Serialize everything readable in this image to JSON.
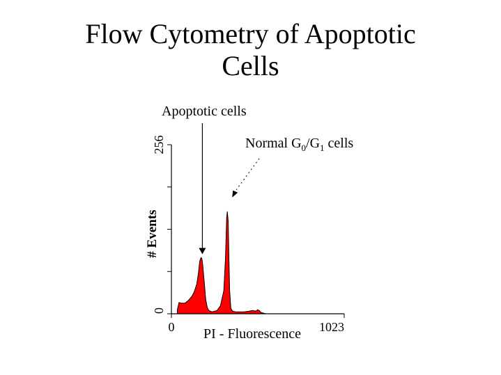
{
  "slide": {
    "title_line1": "Flow Cytometry of Apoptotic",
    "title_line2": "Cells"
  },
  "chart_data": {
    "type": "area",
    "title": "Flow Cytometry of Apoptotic Cells",
    "xlabel": "PI - Fluorescence",
    "ylabel": "# Events",
    "xlim": [
      0,
      1023
    ],
    "ylim": [
      0,
      256
    ],
    "x_ticks": [
      {
        "value": 0,
        "label": "0"
      },
      {
        "value": 1023,
        "label": "1023"
      }
    ],
    "y_ticks": [
      {
        "value": 0,
        "label": "0"
      },
      {
        "value": 256,
        "label": "256"
      }
    ],
    "y_gridmarks": [
      0,
      64,
      128,
      192,
      256
    ],
    "grid": false,
    "fill_color": "#ff0000",
    "series": [
      {
        "x": [
          35,
          45,
          60,
          80,
          100,
          120,
          135,
          150,
          160,
          168,
          175,
          180,
          185,
          190,
          195,
          203,
          213,
          222,
          240,
          270,
          290,
          310,
          320,
          327,
          331,
          336,
          340,
          345,
          352,
          362,
          380,
          400,
          430,
          460,
          480,
          500,
          510,
          520,
          530,
          545,
          560,
          600,
          700,
          800,
          900,
          1023
        ],
        "y": [
          6,
          17,
          16,
          16,
          20,
          26,
          33,
          45,
          62,
          80,
          85,
          84,
          76,
          60,
          46,
          22,
          9,
          5,
          3,
          5,
          12,
          35,
          85,
          145,
          155,
          140,
          90,
          35,
          8,
          4,
          3,
          3,
          3,
          4,
          5,
          4,
          6,
          5,
          2,
          1,
          0,
          0,
          0,
          0,
          0,
          0
        ]
      }
    ],
    "annotations": [
      {
        "text": "Apoptotic cells",
        "points_to": {
          "x": 175,
          "y": 85
        }
      },
      {
        "text_main": "Normal G",
        "sub1": "0",
        "mid": "/G",
        "sub2": "1",
        "text_end": " cells",
        "points_to": {
          "x": 331,
          "y": 172
        }
      }
    ]
  }
}
